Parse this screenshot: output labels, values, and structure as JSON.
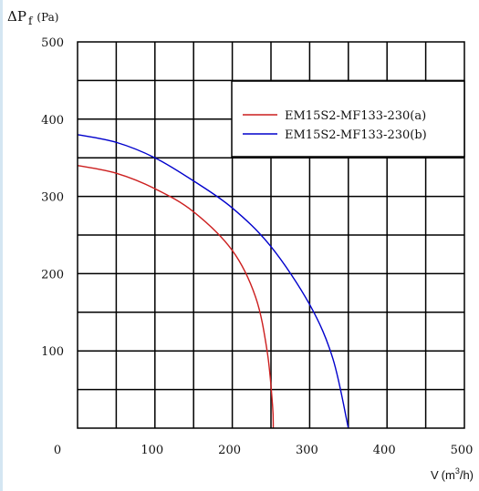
{
  "chart_data": {
    "type": "line",
    "ylabel": {
      "delta": "ΔP",
      "sub": "f",
      "unit": "(Pa)"
    },
    "xlabel": {
      "symbol": "V",
      "unit_open": "(m",
      "unit_sup": "3",
      "unit_close": "/h)"
    },
    "xlim": [
      0,
      500
    ],
    "ylim": [
      0,
      500
    ],
    "x_ticks": [
      "0",
      "100",
      "200",
      "300",
      "400",
      "500"
    ],
    "y_ticks": [
      "100",
      "200",
      "300",
      "400",
      "500"
    ],
    "x_grid_step": 50,
    "y_grid_step": 50,
    "grid": true,
    "legend_position": "top-right",
    "series": [
      {
        "name": "EM15S2-MF133-230(a)",
        "color": "#cc1f1f",
        "x": [
          0,
          50,
          100,
          150,
          200,
          230,
          245,
          252,
          253
        ],
        "y": [
          340,
          330,
          310,
          280,
          230,
          170,
          100,
          30,
          0
        ]
      },
      {
        "name": "EM15S2-MF133-230(b)",
        "color": "#0000cc",
        "x": [
          0,
          50,
          100,
          150,
          200,
          250,
          300,
          330,
          350
        ],
        "y": [
          380,
          370,
          350,
          320,
          285,
          235,
          160,
          90,
          0
        ]
      }
    ]
  }
}
